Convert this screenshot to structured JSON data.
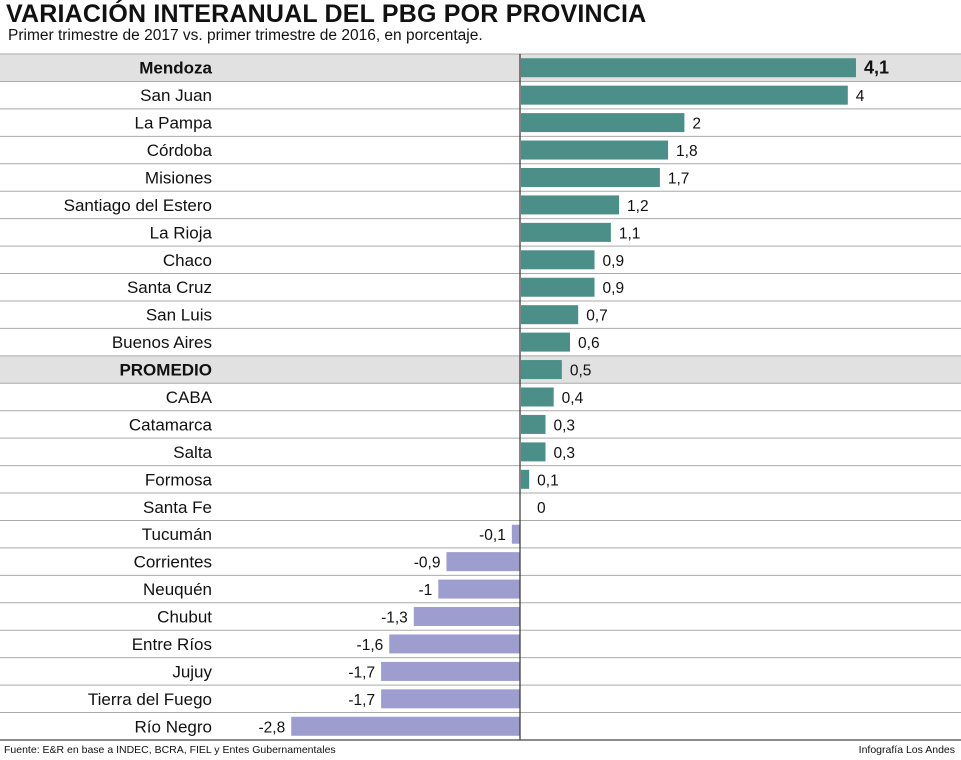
{
  "chart_data": {
    "type": "bar",
    "orientation": "horizontal",
    "title": "VARIACIÓN INTERANUAL DEL PBG POR PROVINCIA",
    "subtitle": "Primer trimestre de 2017 vs. primer trimestre de 2016, en porcentaje.",
    "categories": [
      "Mendoza",
      "San Juan",
      "La Pampa",
      "Córdoba",
      "Misiones",
      "Santiago del Estero",
      "La Rioja",
      "Chaco",
      "Santa Cruz",
      "San Luis",
      "Buenos Aires",
      "PROMEDIO",
      "CABA",
      "Catamarca",
      "Salta",
      "Formosa",
      "Santa Fe",
      "Tucumán",
      "Corrientes",
      "Neuquén",
      "Chubut",
      "Entre Ríos",
      "Jujuy",
      "Tierra del Fuego",
      "Río Negro"
    ],
    "values": [
      4.1,
      4,
      2,
      1.8,
      1.7,
      1.2,
      1.1,
      0.9,
      0.9,
      0.7,
      0.6,
      0.5,
      0.4,
      0.3,
      0.3,
      0.1,
      0,
      -0.1,
      -0.9,
      -1,
      -1.3,
      -1.6,
      -1.7,
      -1.7,
      -2.8
    ],
    "value_labels": [
      "4,1",
      "4",
      "2",
      "1,8",
      "1,7",
      "1,2",
      "1,1",
      "0,9",
      "0,9",
      "0,7",
      "0,6",
      "0,5",
      "0,4",
      "0,3",
      "0,3",
      "0,1",
      "0",
      "-0,1",
      "-0,9",
      "-1",
      "-1,3",
      "-1,6",
      "-1,7",
      "-1,7",
      "-2,8"
    ],
    "highlighted": [
      "Mendoza",
      "PROMEDIO"
    ],
    "xlim": [
      -2.8,
      4.1
    ],
    "colors": {
      "positive": "#4b8f88",
      "negative": "#9d9dd0",
      "highlight_bg": "#e1e1e1",
      "grid": "#aaaaaa"
    }
  },
  "footer": {
    "source": "Fuente: E&R en base a INDEC, BCRA, FIEL y Entes Gubernamentales",
    "credit": "Infografía Los Andes"
  }
}
